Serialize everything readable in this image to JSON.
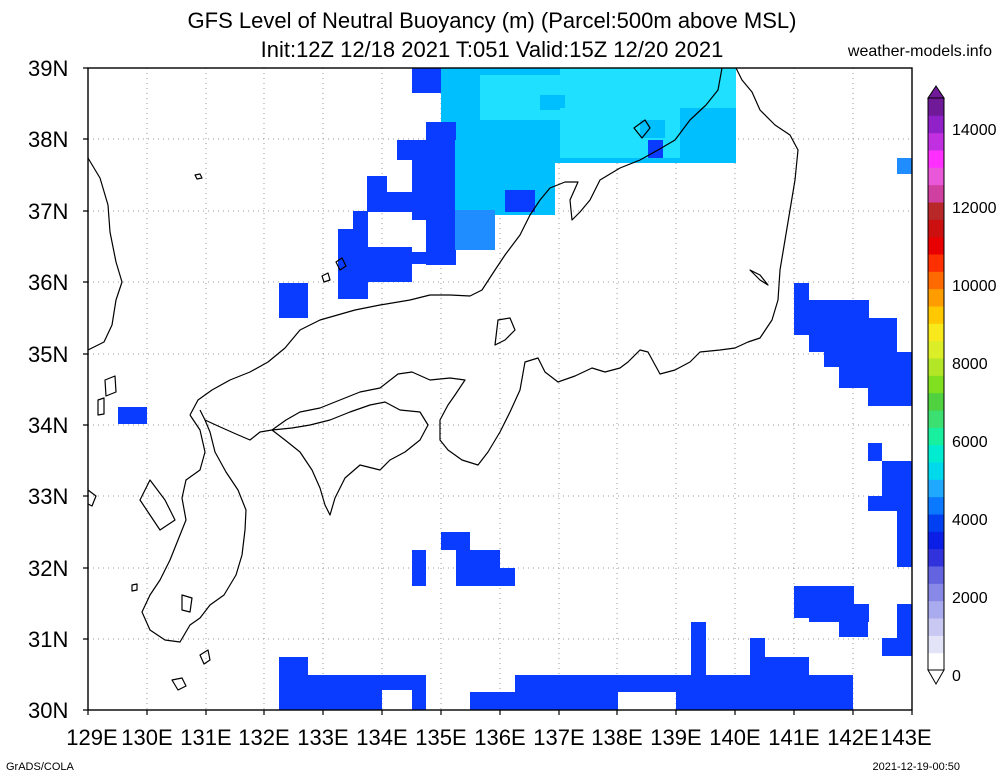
{
  "title_line1": "GFS Level of Neutral Buoyancy (m) (Parcel:500m above MSL)",
  "title_line2": "Init:12Z 12/18 2021 T:051 Valid:15Z 12/20 2021",
  "site": "weather-models.info",
  "footer_left": "GrADS/COLA",
  "footer_right": "2021-12-19-00:50",
  "lat_labels": [
    "39N",
    "38N",
    "37N",
    "36N",
    "35N",
    "34N",
    "33N",
    "32N",
    "31N",
    "30N"
  ],
  "lon_labels": [
    "129E",
    "130E",
    "131E",
    "132E",
    "133E",
    "134E",
    "135E",
    "136E",
    "137E",
    "138E",
    "139E",
    "140E",
    "141E",
    "142E",
    "143E"
  ],
  "colorbar": {
    "labels": [
      "14000",
      "12000",
      "10000",
      "8000",
      "6000",
      "4000",
      "2000",
      "0"
    ],
    "colors": [
      "#ffffff",
      "#e4e4f8",
      "#c8c8f2",
      "#aaaaee",
      "#8888e6",
      "#6464e0",
      "#3232dc",
      "#0a1ee6",
      "#0040f0",
      "#0a78ff",
      "#20a8ff",
      "#00d8ec",
      "#00ecd0",
      "#18f0a0",
      "#3ce070",
      "#50d240",
      "#80e020",
      "#b4e628",
      "#dcee28",
      "#f8e81c",
      "#ffc800",
      "#ff9c00",
      "#ff6a00",
      "#ff3000",
      "#e80000",
      "#cc1010",
      "#b82828",
      "#d040a0",
      "#e858d8",
      "#ff30ff",
      "#c030e0",
      "#9020c8",
      "#701a9a"
    ]
  },
  "legend": {
    "min": 0,
    "max": 15000,
    "units": "m"
  },
  "field_colors": {
    "light_blue": "#00bfff",
    "cyan": "#1fe0ff",
    "blue": "#0a3cff",
    "deep_blue": "#1f56ff"
  }
}
